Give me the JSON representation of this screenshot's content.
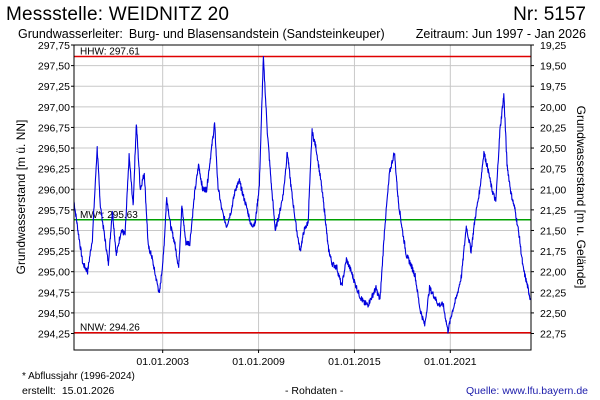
{
  "header": {
    "title": "Messstelle: WEIDNITZ 20",
    "number": "Nr: 5157",
    "aquifer_label": "Grundwasserleiter:",
    "aquifer_value": "Burg- und Blasensandstein (Sandsteinkeuper)",
    "period": "Zeitraum: Jun 1997 - Jan 2026"
  },
  "footer": {
    "footnote": "* Abflussjahr (1996-2024)",
    "created_label": "erstellt:",
    "created_value": "15.01.2026",
    "rawdata": "- Rohdaten -",
    "source": "Quelle: www.lfu.bayern.de"
  },
  "chart_data": {
    "type": "line",
    "ylabel_left": "Grundwasserstand [m ü. NN]",
    "ylabel_right": "Grundwasserstand [m u. Gelände]",
    "ylim": [
      294.05,
      297.75
    ],
    "xlim": [
      "1997-06",
      "2026-01"
    ],
    "yticks_left": [
      "297,75",
      "297,50",
      "297,25",
      "297,00",
      "296,75",
      "296,50",
      "296,25",
      "296,00",
      "295,75",
      "295,50",
      "295,25",
      "295,00",
      "294,75",
      "294,50",
      "294,25"
    ],
    "yticks_left_values": [
      297.75,
      297.5,
      297.25,
      297.0,
      296.75,
      296.5,
      296.25,
      296.0,
      295.75,
      295.5,
      295.25,
      295.0,
      294.75,
      294.5,
      294.25
    ],
    "yticks_right": [
      "19,25",
      "19,50",
      "19,75",
      "20,00",
      "20,25",
      "20,50",
      "20,75",
      "21,00",
      "21,25",
      "21,50",
      "21,75",
      "22,00",
      "22,25",
      "22,50",
      "22,75"
    ],
    "xticks": [
      {
        "value": 2003.0,
        "label": "01.01.2003"
      },
      {
        "value": 2009.0,
        "label": "01.01.2009"
      },
      {
        "value": 2015.0,
        "label": "01.01.2015"
      },
      {
        "value": 2021.0,
        "label": "01.01.2021"
      }
    ],
    "reference_lines": [
      {
        "label": "HHW: 297.61",
        "value": 297.61,
        "color": "#e00000"
      },
      {
        "label": "MW*: 295.63",
        "value": 295.63,
        "color": "#00a000"
      },
      {
        "label": "NNW: 294.26",
        "value": 294.26,
        "color": "#e00000"
      }
    ],
    "line_color": "#0000dd",
    "grid": true,
    "series": [
      {
        "x": [
          1997.45,
          1997.7,
          1998.0,
          1998.3,
          1998.6,
          1998.9,
          1999.1,
          1999.35,
          1999.6,
          1999.85,
          2000.1,
          2000.4,
          2000.65,
          2000.9,
          2001.15,
          2001.35,
          2001.6,
          2001.85,
          2002.1,
          2002.3,
          2002.55,
          2002.8,
          2003.05,
          2003.25,
          2003.5,
          2003.75,
          2004.0,
          2004.2,
          2004.45,
          2004.7,
          2005.0,
          2005.25,
          2005.5,
          2005.75,
          2006.0,
          2006.25,
          2006.45,
          2006.7,
          2007.0,
          2007.3,
          2007.55,
          2007.8,
          2008.0,
          2008.3,
          2008.55,
          2008.8,
          2009.05,
          2009.3,
          2009.55,
          2009.8,
          2010.05,
          2010.3,
          2010.55,
          2010.8,
          2011.05,
          2011.35,
          2011.6,
          2011.85,
          2012.1,
          2012.35,
          2012.6,
          2012.9,
          2013.15,
          2013.35,
          2013.6,
          2013.9,
          2014.2,
          2014.5,
          2014.8,
          2015.05,
          2015.35,
          2015.6,
          2015.85,
          2016.1,
          2016.35,
          2016.6,
          2016.9,
          2017.2,
          2017.5,
          2017.75,
          2018.0,
          2018.25,
          2018.5,
          2018.8,
          2019.1,
          2019.4,
          2019.7,
          2020.0,
          2020.25,
          2020.55,
          2020.85,
          2021.1,
          2021.4,
          2021.7,
          2022.0,
          2022.3,
          2022.55,
          2022.85,
          2023.1,
          2023.35,
          2023.6,
          2023.85,
          2024.1,
          2024.35,
          2024.55,
          2024.8,
          2025.05,
          2025.3,
          2025.55,
          2025.8,
          2026.0
        ],
        "y": [
          295.85,
          295.5,
          295.1,
          295.0,
          295.4,
          296.5,
          295.8,
          295.45,
          295.1,
          295.75,
          295.2,
          295.5,
          295.45,
          296.4,
          295.8,
          296.8,
          296.0,
          296.2,
          295.3,
          295.2,
          294.95,
          294.73,
          295.2,
          295.9,
          295.55,
          295.35,
          295.05,
          295.8,
          295.35,
          295.35,
          295.95,
          296.3,
          296.0,
          296.0,
          296.4,
          296.8,
          296.05,
          295.75,
          295.55,
          295.75,
          296.0,
          296.1,
          295.95,
          295.75,
          295.55,
          295.6,
          296.05,
          297.6,
          296.7,
          296.05,
          295.5,
          295.7,
          295.95,
          296.45,
          296.0,
          295.55,
          295.25,
          295.5,
          295.6,
          296.7,
          296.5,
          296.1,
          295.7,
          295.3,
          295.1,
          295.05,
          294.82,
          295.15,
          295.0,
          294.85,
          294.7,
          294.62,
          294.6,
          294.7,
          294.8,
          294.65,
          295.55,
          296.2,
          296.45,
          295.85,
          295.5,
          295.2,
          295.1,
          294.95,
          294.55,
          294.35,
          294.8,
          294.7,
          294.6,
          294.6,
          294.28,
          294.5,
          294.7,
          294.95,
          295.55,
          295.25,
          295.65,
          296.0,
          296.45,
          296.25,
          296.0,
          295.85,
          296.7,
          297.15,
          296.3,
          295.95,
          295.75,
          295.45,
          295.05,
          294.85,
          294.68
        ]
      }
    ]
  }
}
